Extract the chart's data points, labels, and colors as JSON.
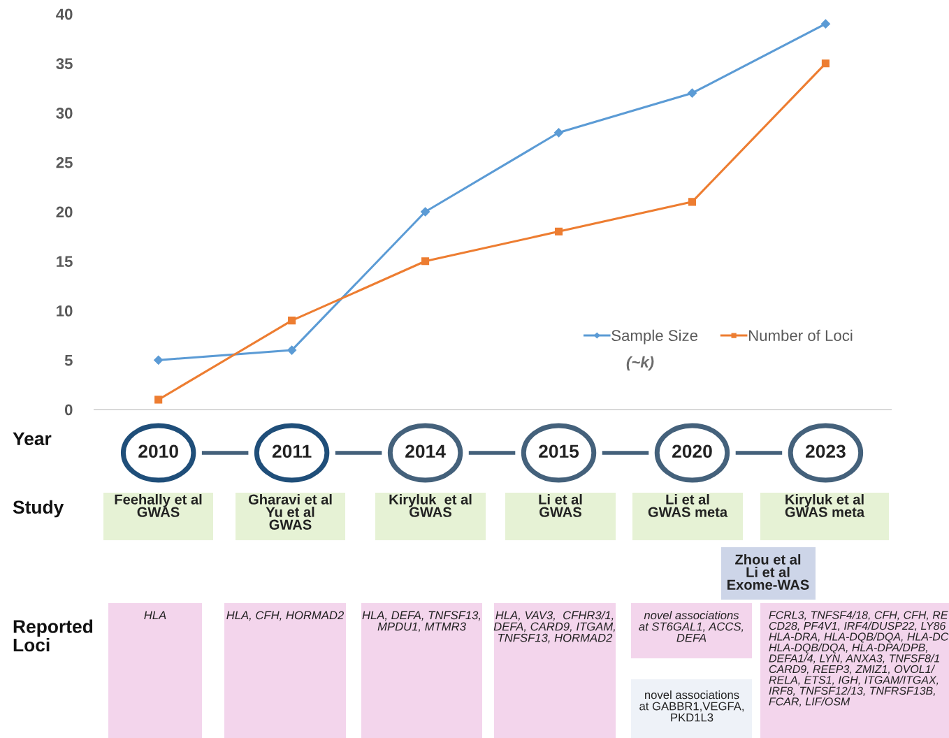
{
  "chart_data": {
    "type": "line",
    "categories": [
      "2010",
      "2011",
      "2014",
      "2015",
      "2020",
      "2023"
    ],
    "series": [
      {
        "name": "Sample Size",
        "color": "#5b9bd5",
        "marker": "diamond",
        "values": [
          5,
          6,
          20,
          28,
          32,
          39
        ]
      },
      {
        "name": "Number of Loci",
        "color": "#ed7d31",
        "marker": "square",
        "values": [
          1,
          9,
          15,
          18,
          21,
          35
        ]
      }
    ],
    "ylim": [
      0,
      40
    ],
    "yticks": [
      0,
      5,
      10,
      15,
      20,
      25,
      30,
      35,
      40
    ],
    "grid": false,
    "legend": "lower right",
    "line_style": "solid",
    "annotations": [
      "(~k)",
      "Year",
      "Study",
      "Reported\nLoci",
      "Feehally et al\nGWAS",
      "Gharavi et al\nYu et al\nGWAS",
      "Kiryluk  et al\nGWAS",
      "Li et al\nGWAS",
      "Li et al\nGWAS meta",
      "Kiryluk et al\nGWAS meta",
      "Zhou et al\nLi et al\nExome-WAS",
      "HLA",
      "HLA, CFH, HORMAD2",
      "HLA, DEFA, TNFSF13,\nMPDU1, MTMR3",
      "HLA, VAV3,  CFHR3/1,\nDEFA, CARD9, ITGAM,\nTNFSF13, HORMAD2",
      "novel associations\nat ST6GAL1, ACCS,\nDEFA",
      "FCRL3, TNFSF4/18, CFH, CFH, RE\nCD28, PF4V1, IRF4/DUSP22, LY86\nHLA-DRA, HLA-DQB/DQA, HLA-DC\nHLA-DQB/DQA, HLA-DPA/DPB,\nDEFA1/4, LYN, ANXA3, TNFSF8/1\nCARD9, REEP3, ZMIZ1, OVOL1/\nRELA, ETS1, IGH, ITGAM/ITGAX,\nIRF8, TNFSF12/13, TNFRSF13B,\nFCAR, LIF/OSM",
      "novel associations\nat GABBR1,VEGFA,\nPKD1L3"
    ]
  }
}
